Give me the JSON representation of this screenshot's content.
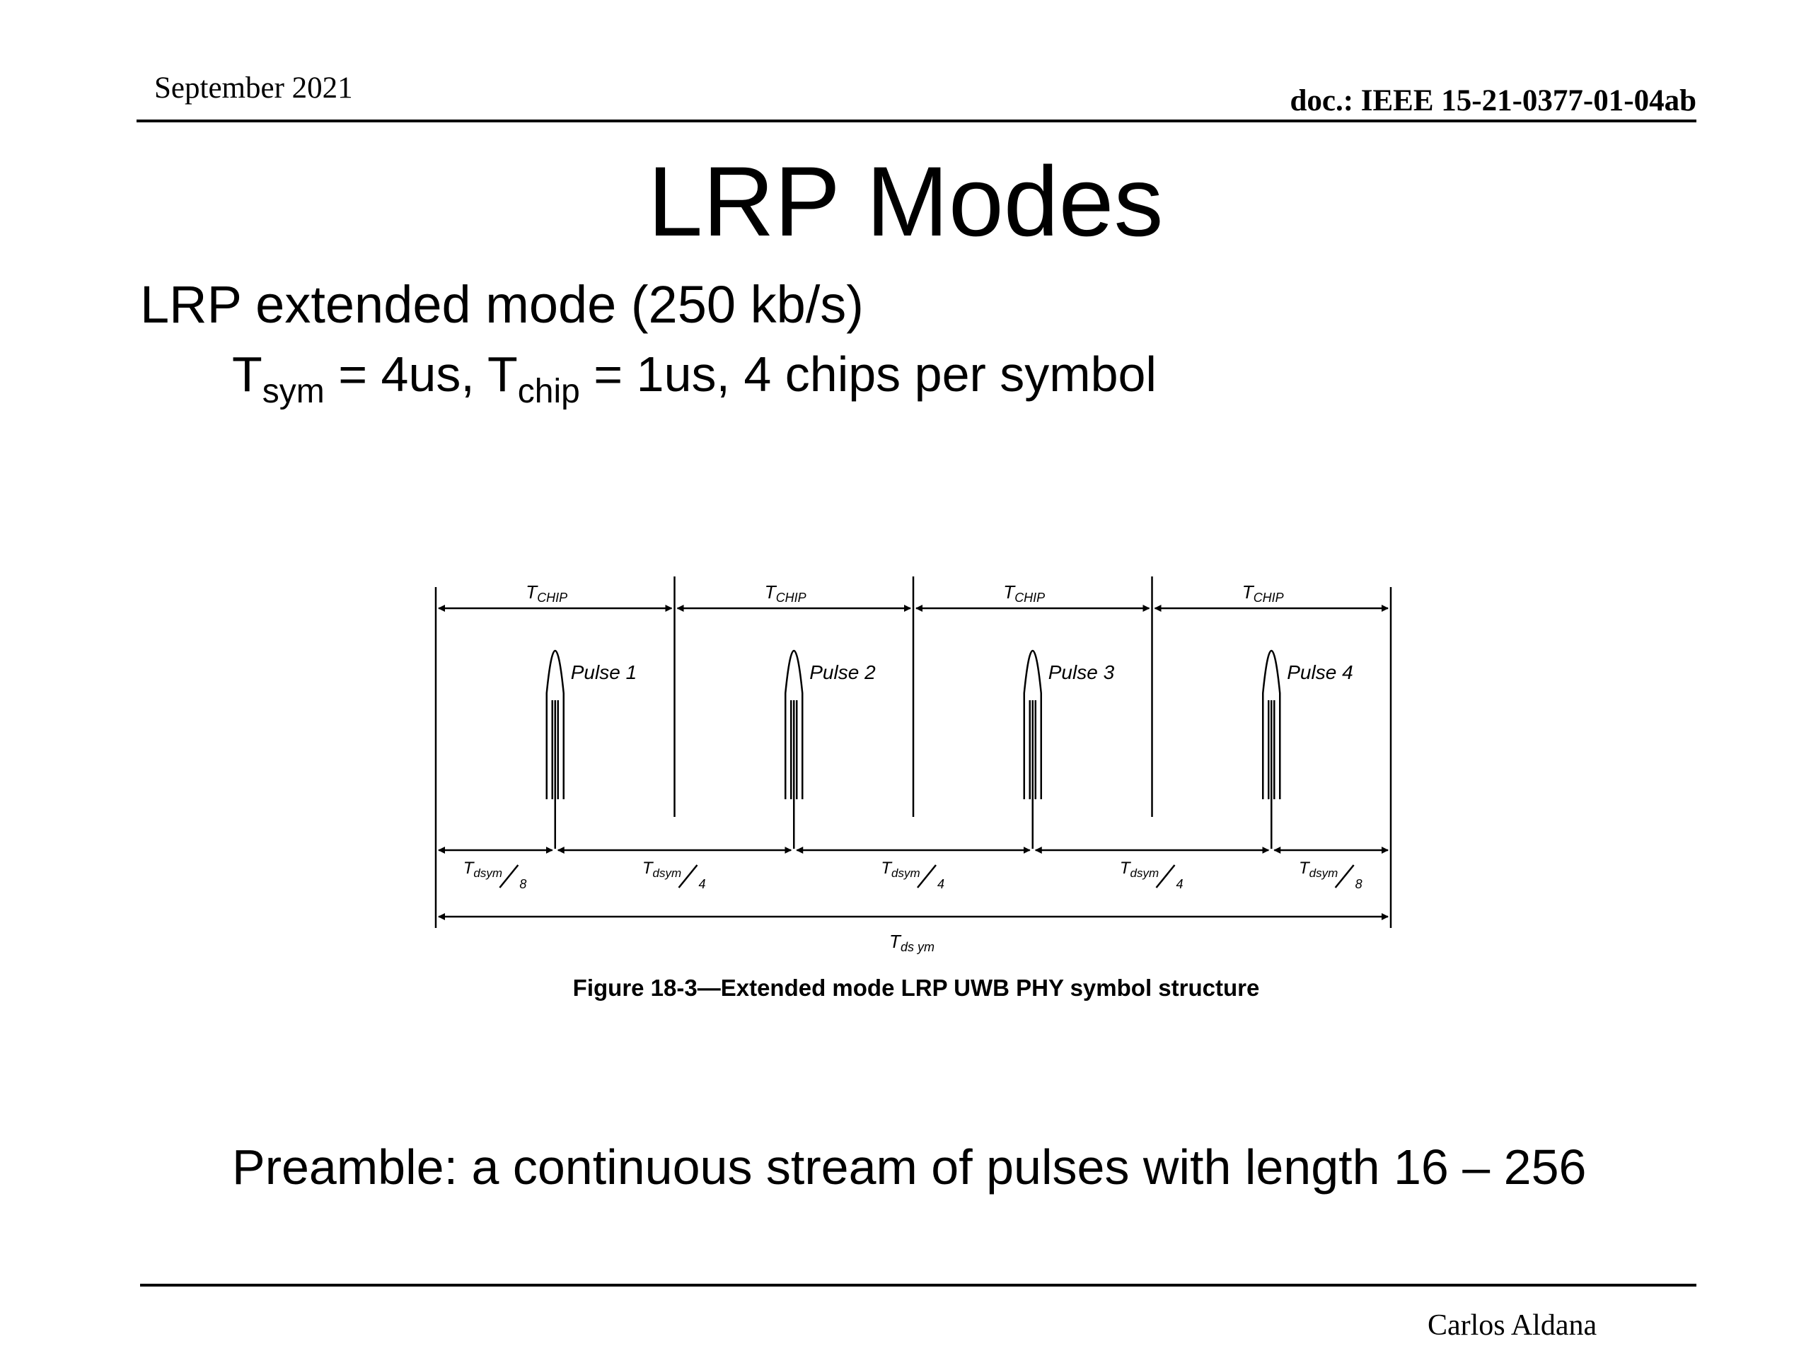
{
  "header": {
    "date": "September 2021",
    "doc_id": "doc.: IEEE 15-21-0377-01-04ab"
  },
  "slide": {
    "title": "LRP Modes",
    "subtitle": "LRP extended mode (250 kb/s)",
    "params": {
      "t_sym_base": "T",
      "t_sym_sub": "sym",
      "t_sym_value": " = 4us, ",
      "t_chip_base": "T",
      "t_chip_sub": "chip",
      "t_chip_value": " = 1us, 4 chips per symbol"
    },
    "preamble": "Preamble: a continuous stream of pulses with length 16 – 256"
  },
  "figure": {
    "chip_label": "T",
    "chip_label_sub": "CHIP",
    "pulses": [
      "Pulse 1",
      "Pulse 2",
      "Pulse 3",
      "Pulse 4"
    ],
    "segments": [
      {
        "base": "T",
        "sub": "dsym",
        "den": "8"
      },
      {
        "base": "T",
        "sub": "dsym",
        "den": "4"
      },
      {
        "base": "T",
        "sub": "dsym",
        "den": "4"
      },
      {
        "base": "T",
        "sub": "dsym",
        "den": "4"
      },
      {
        "base": "T",
        "sub": "dsym",
        "den": "8"
      }
    ],
    "total_label": "T",
    "total_label_sub": "ds ym",
    "caption": "Figure 18-3—Extended mode LRP UWB PHY symbol structure"
  },
  "footer": {
    "author": "Carlos Aldana"
  }
}
